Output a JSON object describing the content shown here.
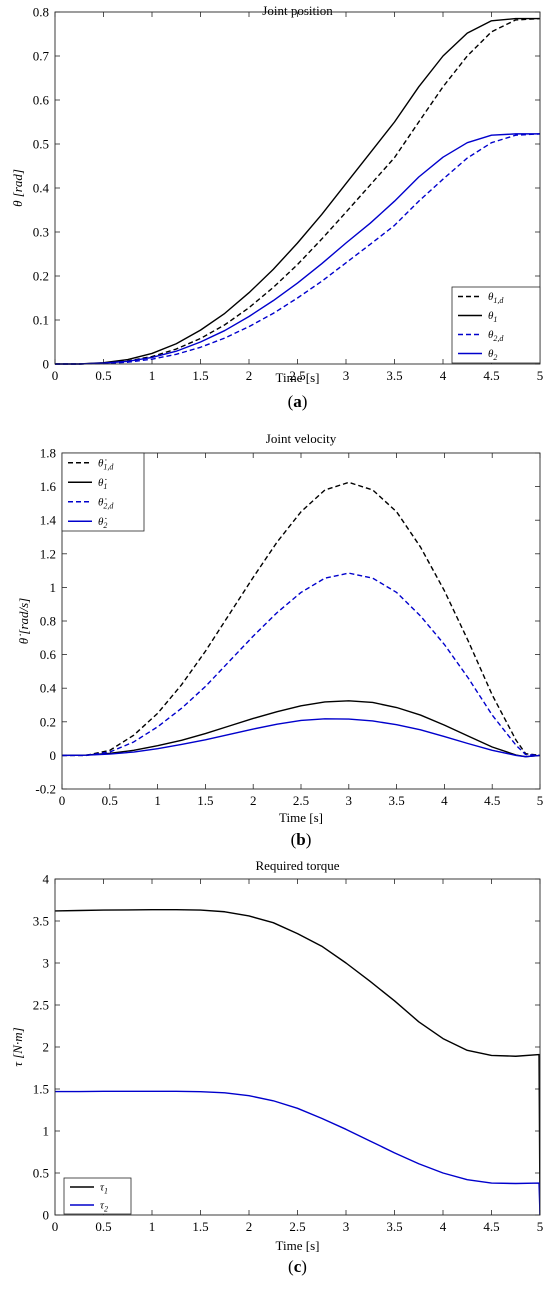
{
  "colors": {
    "black": "#000000",
    "blue": "#0000cc",
    "frame": "#262626"
  },
  "chart_data": [
    {
      "type": "line",
      "panel_label": "a",
      "title": "Joint position",
      "xlabel": "Time [s]",
      "ylabel": "θ [rad]",
      "xlim": [
        0,
        5
      ],
      "ylim": [
        0,
        0.8
      ],
      "xticks": [
        0,
        0.5,
        1,
        1.5,
        2,
        2.5,
        3,
        3.5,
        4,
        4.5,
        5
      ],
      "xtick_labels": [
        "0",
        "0.5",
        "1",
        "1.5",
        "2",
        "2.5",
        "3",
        "3.5",
        "4",
        "4.5",
        "5"
      ],
      "yticks": [
        0,
        0.1,
        0.2,
        0.3,
        0.4,
        0.5,
        0.6,
        0.7,
        0.8
      ],
      "ytick_labels": [
        "0",
        "0.1",
        "0.2",
        "0.3",
        "0.4",
        "0.5",
        "0.6",
        "0.7",
        "0.8"
      ],
      "grid": false,
      "legend_position": "bottom-right",
      "series": [
        {
          "name": "θ1,d",
          "color": "#000000",
          "dash": "dashed",
          "x": [
            0,
            0.25,
            0.5,
            0.75,
            1,
            1.25,
            1.5,
            1.75,
            2,
            2.25,
            2.5,
            2.75,
            3,
            3.25,
            3.5,
            3.75,
            4,
            4.25,
            4.5,
            4.75,
            5
          ],
          "y": [
            0,
            0,
            0.002,
            0.007,
            0.017,
            0.034,
            0.058,
            0.089,
            0.128,
            0.174,
            0.226,
            0.284,
            0.345,
            0.407,
            0.469,
            0.55,
            0.63,
            0.7,
            0.755,
            0.782,
            0.785
          ]
        },
        {
          "name": "θ1",
          "color": "#000000",
          "dash": "solid",
          "x": [
            0,
            0.25,
            0.5,
            0.75,
            1,
            1.25,
            1.5,
            1.75,
            2,
            2.25,
            2.5,
            2.75,
            3,
            3.25,
            3.5,
            3.75,
            4,
            4.25,
            4.5,
            4.75,
            5
          ],
          "y": [
            0,
            0,
            0.003,
            0.01,
            0.024,
            0.046,
            0.077,
            0.115,
            0.162,
            0.215,
            0.275,
            0.34,
            0.41,
            0.48,
            0.55,
            0.63,
            0.7,
            0.752,
            0.78,
            0.785,
            0.785
          ]
        },
        {
          "name": "θ2,d",
          "color": "#0000cc",
          "dash": "dashed",
          "x": [
            0,
            0.25,
            0.5,
            0.75,
            1,
            1.25,
            1.5,
            1.75,
            2,
            2.25,
            2.5,
            2.75,
            3,
            3.25,
            3.5,
            3.75,
            4,
            4.25,
            4.5,
            4.75,
            5
          ],
          "y": [
            0,
            0,
            0.001,
            0.004,
            0.011,
            0.022,
            0.038,
            0.059,
            0.085,
            0.115,
            0.15,
            0.188,
            0.23,
            0.272,
            0.315,
            0.37,
            0.42,
            0.468,
            0.503,
            0.52,
            0.523
          ]
        },
        {
          "name": "θ2",
          "color": "#0000cc",
          "dash": "solid",
          "x": [
            0,
            0.25,
            0.5,
            0.75,
            1,
            1.25,
            1.5,
            1.75,
            2,
            2.25,
            2.5,
            2.75,
            3,
            3.25,
            3.5,
            3.75,
            4,
            4.25,
            4.5,
            4.75,
            5
          ],
          "y": [
            0,
            0,
            0.002,
            0.006,
            0.015,
            0.029,
            0.05,
            0.076,
            0.108,
            0.144,
            0.184,
            0.228,
            0.275,
            0.32,
            0.37,
            0.425,
            0.47,
            0.503,
            0.52,
            0.523,
            0.523
          ]
        }
      ]
    },
    {
      "type": "line",
      "panel_label": "b",
      "title": "Joint velocity",
      "xlabel": "Time [s]",
      "ylabel": "θ̇ [rad/s]",
      "xlim": [
        0,
        5
      ],
      "ylim": [
        -0.2,
        1.8
      ],
      "xticks": [
        0,
        0.5,
        1,
        1.5,
        2,
        2.5,
        3,
        3.5,
        4,
        4.5,
        5
      ],
      "xtick_labels": [
        "0",
        "0.5",
        "1",
        "1.5",
        "2",
        "2.5",
        "3",
        "3.5",
        "4",
        "4.5",
        "5"
      ],
      "yticks": [
        -0.2,
        0,
        0.2,
        0.4,
        0.6,
        0.8,
        1,
        1.2,
        1.4,
        1.6,
        1.8
      ],
      "ytick_labels": [
        "-0.2",
        "0",
        "0.2",
        "0.4",
        "0.6",
        "0.8",
        "1",
        "1.2",
        "1.4",
        "1.6",
        "1.8"
      ],
      "grid": false,
      "legend_position": "top-left",
      "series": [
        {
          "name": "θ̇1,d",
          "color": "#000000",
          "dash": "dashed",
          "x": [
            0,
            0.25,
            0.5,
            0.75,
            1,
            1.25,
            1.5,
            1.75,
            2,
            2.25,
            2.5,
            2.75,
            3,
            3.25,
            3.5,
            3.75,
            4,
            4.25,
            4.5,
            4.75,
            4.85,
            5
          ],
          "y": [
            0,
            0,
            0.03,
            0.12,
            0.25,
            0.42,
            0.62,
            0.84,
            1.06,
            1.27,
            1.45,
            1.58,
            1.625,
            1.58,
            1.45,
            1.24,
            0.98,
            0.68,
            0.36,
            0.09,
            0.01,
            0
          ]
        },
        {
          "name": "θ̇1",
          "color": "#000000",
          "dash": "solid",
          "x": [
            0,
            0.25,
            0.5,
            0.75,
            1,
            1.25,
            1.5,
            1.75,
            2,
            2.25,
            2.5,
            2.75,
            3,
            3.25,
            3.5,
            3.75,
            4,
            4.25,
            4.5,
            4.75,
            4.85,
            5
          ],
          "y": [
            0,
            0.002,
            0.012,
            0.03,
            0.058,
            0.09,
            0.13,
            0.175,
            0.22,
            0.26,
            0.295,
            0.318,
            0.325,
            0.315,
            0.285,
            0.24,
            0.18,
            0.115,
            0.05,
            0.002,
            -0.008,
            0
          ]
        },
        {
          "name": "θ̇2,d",
          "color": "#0000cc",
          "dash": "dashed",
          "x": [
            0,
            0.25,
            0.5,
            0.75,
            1,
            1.25,
            1.5,
            1.75,
            2,
            2.25,
            2.5,
            2.75,
            3,
            3.25,
            3.5,
            3.75,
            4,
            4.25,
            4.5,
            4.75,
            4.85,
            5
          ],
          "y": [
            0,
            0,
            0.02,
            0.08,
            0.17,
            0.28,
            0.41,
            0.56,
            0.71,
            0.85,
            0.97,
            1.055,
            1.085,
            1.055,
            0.97,
            0.83,
            0.66,
            0.46,
            0.24,
            0.06,
            0.005,
            0
          ]
        },
        {
          "name": "θ̇2",
          "color": "#0000cc",
          "dash": "solid",
          "x": [
            0,
            0.25,
            0.5,
            0.75,
            1,
            1.25,
            1.5,
            1.75,
            2,
            2.25,
            2.5,
            2.75,
            3,
            3.25,
            3.5,
            3.75,
            4,
            4.25,
            4.5,
            4.75,
            4.85,
            5
          ],
          "y": [
            0,
            0.001,
            0.008,
            0.02,
            0.04,
            0.065,
            0.093,
            0.125,
            0.157,
            0.186,
            0.208,
            0.218,
            0.216,
            0.205,
            0.183,
            0.152,
            0.112,
            0.07,
            0.03,
            0,
            -0.008,
            0
          ]
        }
      ]
    },
    {
      "type": "line",
      "panel_label": "c",
      "title": "Required torque",
      "xlabel": "Time [s]",
      "ylabel": "τ [N·m]",
      "xlim": [
        0,
        5
      ],
      "ylim": [
        0,
        4
      ],
      "xticks": [
        0,
        0.5,
        1,
        1.5,
        2,
        2.5,
        3,
        3.5,
        4,
        4.5,
        5
      ],
      "xtick_labels": [
        "0",
        "0.5",
        "1",
        "1.5",
        "2",
        "2.5",
        "3",
        "3.5",
        "4",
        "4.5",
        "5"
      ],
      "yticks": [
        0,
        0.5,
        1,
        1.5,
        2,
        2.5,
        3,
        3.5,
        4
      ],
      "ytick_labels": [
        "0",
        "0.5",
        "1",
        "1.5",
        "2",
        "2.5",
        "3",
        "3.5",
        "4"
      ],
      "grid": false,
      "legend_position": "bottom-left",
      "series": [
        {
          "name": "τ1",
          "color": "#000000",
          "dash": "solid",
          "x": [
            0,
            0.25,
            0.5,
            0.75,
            1,
            1.25,
            1.5,
            1.75,
            2,
            2.25,
            2.5,
            2.75,
            3,
            3.25,
            3.5,
            3.75,
            4,
            4.25,
            4.5,
            4.75,
            4.99,
            5
          ],
          "y": [
            3.62,
            3.625,
            3.63,
            3.632,
            3.635,
            3.635,
            3.63,
            3.61,
            3.56,
            3.48,
            3.35,
            3.2,
            3.0,
            2.78,
            2.55,
            2.3,
            2.1,
            1.96,
            1.9,
            1.89,
            1.91,
            0
          ]
        },
        {
          "name": "τ2",
          "color": "#0000cc",
          "dash": "solid",
          "x": [
            0,
            0.25,
            0.5,
            0.75,
            1,
            1.25,
            1.5,
            1.75,
            2,
            2.25,
            2.5,
            2.75,
            3,
            3.25,
            3.5,
            3.75,
            4,
            4.25,
            4.5,
            4.75,
            4.99,
            5
          ],
          "y": [
            1.47,
            1.47,
            1.472,
            1.473,
            1.473,
            1.472,
            1.468,
            1.455,
            1.42,
            1.36,
            1.27,
            1.15,
            1.02,
            0.88,
            0.74,
            0.61,
            0.5,
            0.42,
            0.38,
            0.375,
            0.38,
            0
          ]
        }
      ]
    }
  ]
}
